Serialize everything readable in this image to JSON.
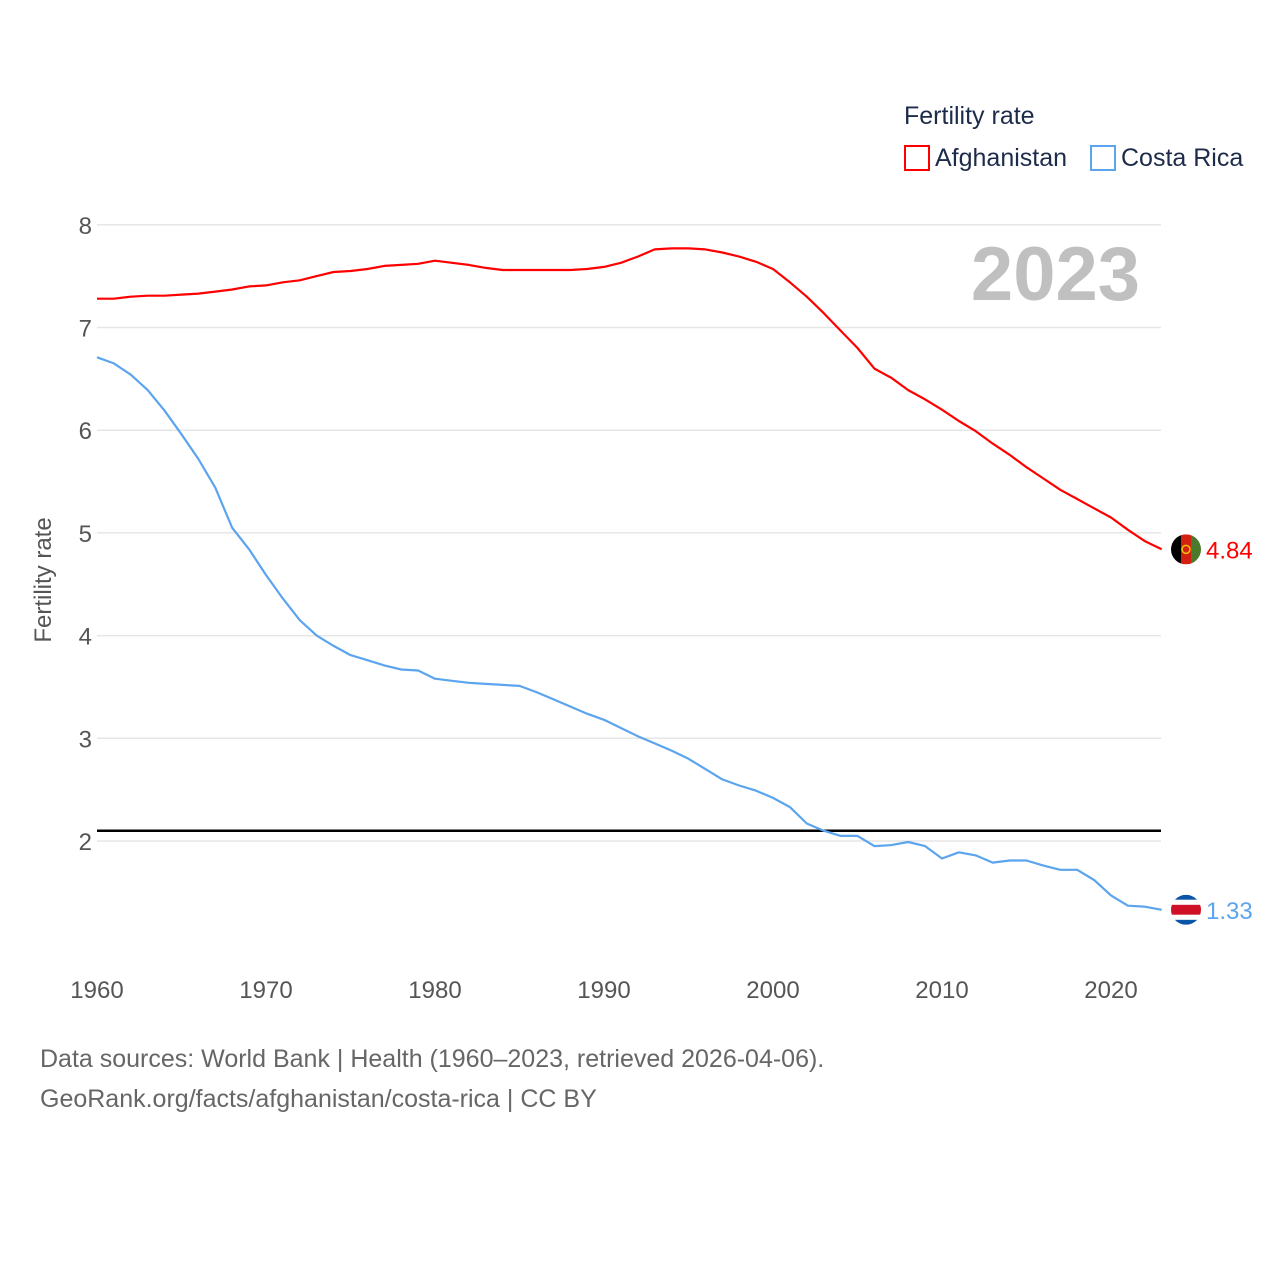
{
  "chart_data": {
    "type": "line",
    "title": "",
    "legend_title": "Fertility rate",
    "legend_position": "top-right",
    "year_label": "2023",
    "xlabel": "",
    "ylabel": "Fertility rate",
    "xlim": [
      1960,
      2023
    ],
    "ylim": [
      1,
      8
    ],
    "x_ticks": [
      "1960",
      "1970",
      "1980",
      "1990",
      "2000",
      "2010",
      "2020"
    ],
    "y_ticks": [
      "2",
      "3",
      "4",
      "5",
      "6",
      "7",
      "8"
    ],
    "grid": true,
    "reference_line": {
      "value": 2.1,
      "color": "#000000"
    },
    "x": [
      1960,
      1961,
      1962,
      1963,
      1964,
      1965,
      1966,
      1967,
      1968,
      1969,
      1970,
      1971,
      1972,
      1973,
      1974,
      1975,
      1976,
      1977,
      1978,
      1979,
      1980,
      1981,
      1982,
      1983,
      1984,
      1985,
      1986,
      1987,
      1988,
      1989,
      1990,
      1991,
      1992,
      1993,
      1994,
      1995,
      1996,
      1997,
      1998,
      1999,
      2000,
      2001,
      2002,
      2003,
      2004,
      2005,
      2006,
      2007,
      2008,
      2009,
      2010,
      2011,
      2012,
      2013,
      2014,
      2015,
      2016,
      2017,
      2018,
      2019,
      2020,
      2021,
      2022,
      2023
    ],
    "series": [
      {
        "name": "Afghanistan",
        "color": "#ff0000",
        "end_label": "4.84",
        "flag": "afghanistan-flag",
        "values": [
          7.28,
          7.28,
          7.3,
          7.31,
          7.31,
          7.32,
          7.33,
          7.35,
          7.37,
          7.4,
          7.41,
          7.44,
          7.46,
          7.5,
          7.54,
          7.55,
          7.57,
          7.6,
          7.61,
          7.62,
          7.65,
          7.63,
          7.61,
          7.58,
          7.56,
          7.56,
          7.56,
          7.56,
          7.56,
          7.57,
          7.59,
          7.63,
          7.69,
          7.76,
          7.77,
          7.77,
          7.76,
          7.73,
          7.69,
          7.64,
          7.57,
          7.44,
          7.3,
          7.14,
          6.97,
          6.8,
          6.6,
          6.51,
          6.39,
          6.3,
          6.2,
          6.09,
          5.99,
          5.87,
          5.76,
          5.64,
          5.53,
          5.42,
          5.33,
          5.24,
          5.15,
          5.03,
          4.92,
          4.84
        ]
      },
      {
        "name": "Costa Rica",
        "color": "#5ba4ee",
        "end_label": "1.33",
        "flag": "costa-rica-flag",
        "values": [
          6.71,
          6.65,
          6.54,
          6.39,
          6.19,
          5.96,
          5.72,
          5.44,
          5.05,
          4.84,
          4.59,
          4.36,
          4.15,
          4.0,
          3.9,
          3.81,
          3.76,
          3.71,
          3.67,
          3.66,
          3.58,
          3.56,
          3.54,
          3.53,
          3.52,
          3.51,
          3.45,
          3.38,
          3.31,
          3.24,
          3.18,
          3.1,
          3.02,
          2.95,
          2.88,
          2.8,
          2.7,
          2.6,
          2.54,
          2.49,
          2.42,
          2.33,
          2.17,
          2.1,
          2.05,
          2.05,
          1.95,
          1.96,
          1.99,
          1.95,
          1.83,
          1.89,
          1.86,
          1.79,
          1.81,
          1.81,
          1.76,
          1.72,
          1.72,
          1.62,
          1.47,
          1.37,
          1.36,
          1.33
        ]
      }
    ]
  },
  "footer": {
    "line1": "Data sources: World Bank | Health (1960–2023, retrieved 2026-04-06).",
    "line2": "GeoRank.org/facts/afghanistan/costa-rica | CC BY"
  }
}
